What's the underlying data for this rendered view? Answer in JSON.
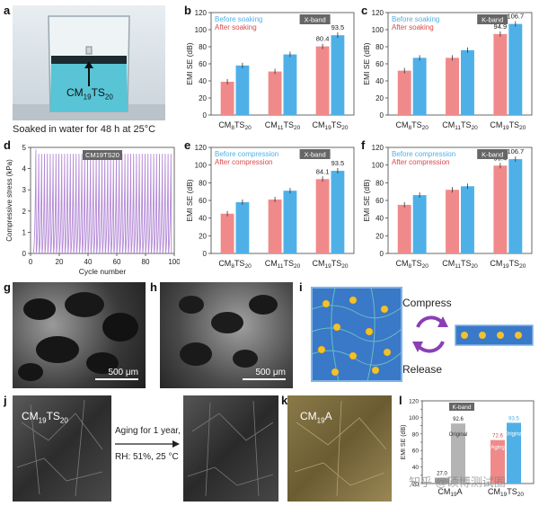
{
  "panel_labels": [
    "a",
    "b",
    "c",
    "d",
    "e",
    "f",
    "g",
    "h",
    "i",
    "j",
    "k",
    "l"
  ],
  "panel_a": {
    "sample": "CM",
    "sample_sub1": "19",
    "sample_mid": "TS",
    "sample_sub2": "20",
    "caption": "Soaked in water for 48 h at 25°C"
  },
  "panel_d": {
    "legend": "CM19TS20",
    "ylabel": "Compressive stress (kPa)",
    "xlabel": "Cycle number"
  },
  "panel_g": {
    "scale": "500 μm"
  },
  "panel_h": {
    "scale": "500 μm"
  },
  "panel_i": {
    "compress": "Compress",
    "release": "Release"
  },
  "panel_j": {
    "sample": "CM",
    "sub1": "19",
    "mid": "TS",
    "sub2": "20",
    "aging_line1": "Aging for 1 year,",
    "aging_line2": "RH: 51%, 25 °C"
  },
  "panel_k": {
    "sample": "CM",
    "sub1": "19",
    "mid": "A"
  },
  "watermark": "知乎 @硕博测试圈",
  "colors": {
    "red": "#f08a8a",
    "blue": "#4fb0e8",
    "gray": "#b4b4b4",
    "purple": "#b48ad6"
  },
  "chart_data": [
    {
      "panel": "b",
      "type": "bar",
      "band": "X-band",
      "categories": [
        "CM8TS20",
        "CM11TS20",
        "CM19TS20"
      ],
      "series": [
        {
          "name": "Before soaking",
          "values": [
            58,
            71,
            93.5
          ],
          "color": "#4fb0e8"
        },
        {
          "name": "After soaking",
          "values": [
            39,
            51,
            80.4
          ],
          "color": "#f08a8a"
        }
      ],
      "labels": {
        "red": "80.4",
        "blue": "93.5"
      },
      "ylabel": "EMI SE (dB)",
      "ylim": [
        0,
        120
      ],
      "yticks": [
        0,
        20,
        40,
        60,
        80,
        100,
        120
      ]
    },
    {
      "panel": "c",
      "type": "bar",
      "band": "K-band",
      "categories": [
        "CM8TS20",
        "CM11TS20",
        "CM19TS20"
      ],
      "series": [
        {
          "name": "Before soaking",
          "values": [
            67,
            76,
            106.7
          ],
          "color": "#4fb0e8"
        },
        {
          "name": "After soaking",
          "values": [
            52,
            67,
            94.9
          ],
          "color": "#f08a8a"
        }
      ],
      "labels": {
        "red": "94.9",
        "blue": "106.7"
      },
      "ylabel": "EMI SE (dB)",
      "ylim": [
        0,
        120
      ],
      "yticks": [
        0,
        20,
        40,
        60,
        80,
        100,
        120
      ]
    },
    {
      "panel": "d",
      "type": "line",
      "xlim": [
        0,
        100
      ],
      "xticks": [
        0,
        20,
        40,
        60,
        80,
        100
      ],
      "ylim": [
        0,
        5
      ],
      "yticks": [
        0,
        1,
        2,
        3,
        4,
        5
      ],
      "cycles": 48,
      "peak": 4.8
    },
    {
      "panel": "e",
      "type": "bar",
      "band": "X-band",
      "categories": [
        "CM8TS20",
        "CM11TS20",
        "CM19TS20"
      ],
      "series": [
        {
          "name": "Before compression",
          "values": [
            58,
            71,
            93.5
          ],
          "color": "#4fb0e8"
        },
        {
          "name": "After compression",
          "values": [
            45,
            61,
            84.1
          ],
          "color": "#f08a8a"
        }
      ],
      "labels": {
        "red": "84.1",
        "blue": "93.5"
      },
      "ylabel": "EMI SE (dB)",
      "ylim": [
        0,
        120
      ],
      "yticks": [
        0,
        20,
        40,
        60,
        80,
        100,
        120
      ]
    },
    {
      "panel": "f",
      "type": "bar",
      "band": "K-band",
      "categories": [
        "CM8TS20",
        "CM11TS20",
        "CM19TS20"
      ],
      "series": [
        {
          "name": "Before compression",
          "values": [
            66,
            76,
            106.7
          ],
          "color": "#4fb0e8"
        },
        {
          "name": "After compression",
          "values": [
            55,
            72,
            99.4
          ],
          "color": "#f08a8a"
        }
      ],
      "labels": {
        "red": "99.4",
        "blue": "106.7"
      },
      "ylabel": "EMI SE (dB)",
      "ylim": [
        0,
        120
      ],
      "yticks": [
        0,
        20,
        40,
        60,
        80,
        100,
        120
      ]
    },
    {
      "panel": "l",
      "type": "bar",
      "band": "K-band",
      "categories": [
        "CM19A",
        "CM19TS20"
      ],
      "values_original": [
        92.6,
        93.5
      ],
      "values_aging": [
        27.0,
        72.6
      ],
      "labels": [
        "27.0",
        "92.6",
        "72.6",
        "93.5"
      ],
      "series_names": [
        "Original",
        "Aging",
        "Original"
      ],
      "ylabel": "EMI SE (dB)",
      "ylim": [
        20,
        120
      ],
      "yticks": [
        20,
        30,
        40,
        50,
        60,
        70,
        80,
        90,
        100,
        110,
        120
      ]
    }
  ]
}
